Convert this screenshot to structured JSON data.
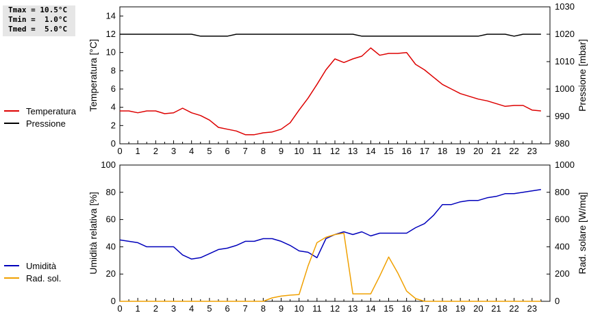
{
  "stats": {
    "tmax": "Tmax = 10.5°C",
    "tmin": "Tmin =  1.0°C",
    "tmed": "Tmed =  5.0°C"
  },
  "chart_data": [
    {
      "type": "line",
      "x_ticks": [
        0,
        1,
        2,
        3,
        4,
        5,
        6,
        7,
        8,
        9,
        10,
        11,
        12,
        13,
        14,
        15,
        16,
        17,
        18,
        19,
        20,
        21,
        22,
        23
      ],
      "xlim": [
        0,
        24
      ],
      "ylabel_left": "Temperatura [°C]",
      "ylabel_right": "Pressione [mbar]",
      "ylim_left": [
        0,
        15
      ],
      "yticks_left": [
        0,
        2,
        4,
        6,
        8,
        10,
        12,
        14
      ],
      "ylim_right": [
        980,
        1030
      ],
      "yticks_right": [
        980,
        990,
        1000,
        1010,
        1020,
        1030
      ],
      "legend": [
        "Temperatura",
        "Pressione"
      ],
      "colors": [
        "#dd0000",
        "#000000"
      ],
      "series": [
        {
          "name": "Temperatura",
          "axis": "left",
          "x": [
            0,
            0.5,
            1,
            1.5,
            2,
            2.5,
            3,
            3.5,
            4,
            4.5,
            5,
            5.5,
            6,
            6.5,
            7,
            7.5,
            8,
            8.5,
            9,
            9.5,
            10,
            10.5,
            11,
            11.5,
            12,
            12.5,
            13,
            13.5,
            14,
            14.5,
            15,
            15.5,
            16,
            16.5,
            17,
            17.5,
            18,
            18.5,
            19,
            19.5,
            20,
            20.5,
            21,
            21.5,
            22,
            22.5,
            23,
            23.5
          ],
          "values": [
            3.6,
            3.6,
            3.4,
            3.6,
            3.6,
            3.3,
            3.4,
            3.9,
            3.4,
            3.1,
            2.6,
            1.8,
            1.6,
            1.4,
            1.0,
            1.0,
            1.2,
            1.3,
            1.6,
            2.3,
            3.7,
            5.0,
            6.5,
            8.1,
            9.3,
            8.9,
            9.3,
            9.6,
            10.5,
            9.7,
            9.9,
            9.9,
            10.0,
            8.7,
            8.1,
            7.3,
            6.5,
            6.0,
            5.5,
            5.2,
            4.9,
            4.7,
            4.4,
            4.1,
            4.2,
            4.2,
            3.7,
            3.6
          ]
        },
        {
          "name": "Pressione",
          "axis": "right",
          "x": [
            0,
            0.5,
            1,
            1.5,
            2,
            2.5,
            3,
            3.5,
            4,
            4.5,
            5,
            5.5,
            6,
            6.5,
            7,
            7.5,
            8,
            8.5,
            9,
            9.5,
            10,
            10.5,
            11,
            11.5,
            12,
            12.5,
            13,
            13.5,
            14,
            14.5,
            15,
            15.5,
            16,
            16.5,
            17,
            17.5,
            18,
            18.5,
            19,
            19.5,
            20,
            20.5,
            21,
            21.5,
            22,
            22.5,
            23,
            23.5
          ],
          "values": [
            1020,
            1020,
            1020,
            1020,
            1020,
            1020,
            1020,
            1020,
            1020,
            1019.3,
            1019.3,
            1019.3,
            1019.3,
            1020,
            1020,
            1020,
            1020,
            1020,
            1020,
            1020,
            1020,
            1020,
            1020,
            1020,
            1020,
            1020,
            1020,
            1019.3,
            1019.3,
            1019.3,
            1019.3,
            1019.3,
            1019.3,
            1019.3,
            1019.3,
            1019.3,
            1019.3,
            1019.3,
            1019.3,
            1019.3,
            1019.3,
            1020,
            1020,
            1020,
            1019.3,
            1020,
            1020,
            1020
          ]
        }
      ]
    },
    {
      "type": "line",
      "x_ticks": [
        0,
        1,
        2,
        3,
        4,
        5,
        6,
        7,
        8,
        9,
        10,
        11,
        12,
        13,
        14,
        15,
        16,
        17,
        18,
        19,
        20,
        21,
        22,
        23
      ],
      "xlim": [
        0,
        24
      ],
      "ylabel_left": "Umidità relativa [%]",
      "ylabel_right": "Rad. solare [W/mq]",
      "ylim_left": [
        0,
        100
      ],
      "yticks_left": [
        0,
        20,
        40,
        60,
        80,
        100
      ],
      "ylim_right": [
        0,
        1000
      ],
      "yticks_right": [
        0,
        200,
        400,
        600,
        800,
        1000
      ],
      "legend": [
        "Umidità",
        "Rad. sol."
      ],
      "colors": [
        "#0000bb",
        "#f0a000"
      ],
      "series": [
        {
          "name": "Umidità",
          "axis": "left",
          "x": [
            0,
            0.5,
            1,
            1.5,
            2,
            2.5,
            3,
            3.5,
            4,
            4.5,
            5,
            5.5,
            6,
            6.5,
            7,
            7.5,
            8,
            8.5,
            9,
            9.5,
            10,
            10.5,
            11,
            11.5,
            12,
            12.5,
            13,
            13.5,
            14,
            14.5,
            15,
            15.5,
            16,
            16.5,
            17,
            17.5,
            18,
            18.5,
            19,
            19.5,
            20,
            20.5,
            21,
            21.5,
            22,
            22.5,
            23,
            23.5
          ],
          "values": [
            45,
            44,
            43,
            40,
            40,
            40,
            40,
            34,
            31,
            32,
            35,
            38,
            39,
            41,
            44,
            44,
            46,
            46,
            44,
            41,
            37,
            36,
            32,
            46,
            49,
            51,
            49,
            51,
            48,
            50,
            50,
            50,
            50,
            54,
            57,
            63,
            71,
            71,
            73,
            74,
            74,
            76,
            77,
            79,
            79,
            80,
            81,
            82
          ]
        },
        {
          "name": "Rad. sol.",
          "axis": "right",
          "x": [
            0,
            0.5,
            1,
            1.5,
            2,
            2.5,
            3,
            3.5,
            4,
            4.5,
            5,
            5.5,
            6,
            6.5,
            7,
            7.5,
            8,
            8.5,
            9,
            9.5,
            10,
            10.5,
            11,
            11.5,
            12,
            12.5,
            13,
            13.5,
            14,
            14.5,
            15,
            15.5,
            16,
            16.5,
            17,
            17.5,
            18,
            18.5,
            19,
            19.5,
            20,
            20.5,
            21,
            21.5,
            22,
            22.5,
            23,
            23.5
          ],
          "values": [
            0,
            0,
            0,
            0,
            0,
            0,
            0,
            0,
            0,
            0,
            0,
            0,
            0,
            0,
            0,
            0,
            0,
            25,
            38,
            45,
            50,
            260,
            430,
            470,
            490,
            500,
            55,
            55,
            55,
            185,
            325,
            210,
            75,
            20,
            0,
            0,
            0,
            0,
            0,
            0,
            0,
            0,
            0,
            0,
            0,
            0,
            0,
            0
          ]
        }
      ]
    }
  ]
}
